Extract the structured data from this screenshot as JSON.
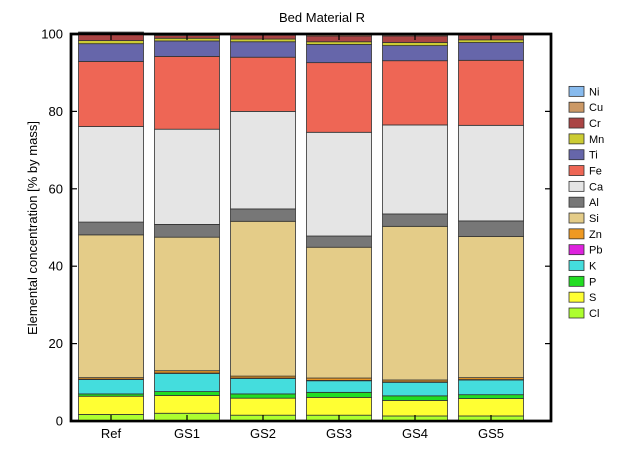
{
  "chart_data": {
    "type": "bar",
    "stacked": true,
    "title": "Bed Material R",
    "xlabel": "",
    "ylabel": "Elemental concentration [% by mass]",
    "ylim": [
      0,
      100
    ],
    "yticks": [
      0,
      20,
      40,
      60,
      80,
      100
    ],
    "grid": false,
    "legend_position": "right",
    "categories": [
      "Ref",
      "GS1",
      "GS2",
      "GS3",
      "GS4",
      "GS5"
    ],
    "series": [
      {
        "name": "Cl",
        "color": "#adff2f",
        "values": [
          1.7,
          2.0,
          1.5,
          1.5,
          1.3,
          1.3
        ]
      },
      {
        "name": "S",
        "color": "#ffff33",
        "values": [
          4.7,
          4.6,
          4.4,
          4.6,
          4.0,
          4.5
        ]
      },
      {
        "name": "P",
        "color": "#22dd22",
        "values": [
          0.6,
          1.0,
          1.1,
          1.3,
          1.2,
          1.0
        ]
      },
      {
        "name": "K",
        "color": "#44dddd",
        "values": [
          3.7,
          4.7,
          4.0,
          3.0,
          3.5,
          3.8
        ]
      },
      {
        "name": "Pb",
        "color": "#dd22dd",
        "values": [
          0.1,
          0.1,
          0.1,
          0.1,
          0.1,
          0.1
        ]
      },
      {
        "name": "Zn",
        "color": "#ee9922",
        "values": [
          0.4,
          0.6,
          0.5,
          0.6,
          0.5,
          0.5
        ]
      },
      {
        "name": "Si",
        "color": "#e4cc88",
        "values": [
          36.9,
          34.5,
          40.0,
          33.8,
          39.7,
          36.5
        ]
      },
      {
        "name": "Al",
        "color": "#777777",
        "values": [
          3.3,
          3.3,
          3.2,
          2.9,
          3.2,
          4.0
        ]
      },
      {
        "name": "Ca",
        "color": "#e5e5e5",
        "values": [
          24.7,
          24.6,
          25.2,
          26.8,
          23.0,
          24.7
        ]
      },
      {
        "name": "Fe",
        "color": "#ee6655",
        "values": [
          16.8,
          18.8,
          14.0,
          18.0,
          16.6,
          16.8
        ]
      },
      {
        "name": "Ti",
        "color": "#6666aa",
        "values": [
          4.6,
          4.0,
          4.0,
          4.7,
          3.9,
          4.6
        ]
      },
      {
        "name": "Mn",
        "color": "#cccc33",
        "values": [
          0.8,
          0.7,
          0.7,
          0.7,
          0.8,
          0.7
        ]
      },
      {
        "name": "Cr",
        "color": "#aa4444",
        "values": [
          1.7,
          0.7,
          1.0,
          1.5,
          1.7,
          1.2
        ]
      },
      {
        "name": "Cu",
        "color": "#cc9966",
        "values": [
          0.3,
          0.3,
          0.2,
          0.4,
          0.3,
          0.3
        ]
      },
      {
        "name": "Ni",
        "color": "#88bbee",
        "values": [
          0.2,
          0.1,
          0.1,
          0.1,
          0.2,
          0.0
        ]
      }
    ]
  }
}
